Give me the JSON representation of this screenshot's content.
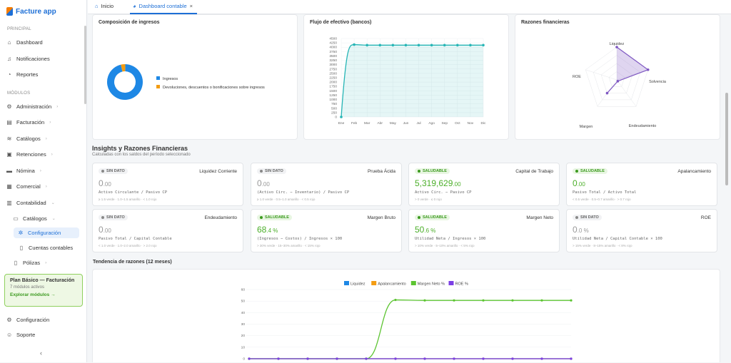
{
  "app": {
    "name": "Facture app"
  },
  "sidebar": {
    "section_principal": "PRINCIPAL",
    "principal": [
      {
        "label": "Dashboard",
        "icon": "home-icon"
      },
      {
        "label": "Notificaciones",
        "icon": "bell-icon"
      },
      {
        "label": "Reportes",
        "icon": "report-icon"
      }
    ],
    "section_modulos": "MÓDULOS",
    "modulos": [
      {
        "label": "Administración",
        "icon": "admin-icon"
      },
      {
        "label": "Facturación",
        "icon": "invoice-icon"
      },
      {
        "label": "Catálogos",
        "icon": "stack-icon"
      },
      {
        "label": "Retenciones",
        "icon": "retention-icon"
      },
      {
        "label": "Nómina",
        "icon": "payroll-icon"
      },
      {
        "label": "Comercial",
        "icon": "commercial-icon"
      },
      {
        "label": "Contabilidad",
        "icon": "accounting-icon"
      },
      {
        "label": "Catálogos",
        "icon": "folder-icon"
      },
      {
        "label": "Configuración",
        "icon": "settings-icon"
      },
      {
        "label": "Cuentas contables",
        "icon": "document-icon"
      },
      {
        "label": "Pólizas",
        "icon": "document-icon"
      }
    ],
    "plan": {
      "title": "Plan Básico — Facturación",
      "subtitle": "7 módulos activos",
      "link": "Explorar módulos →"
    },
    "footer": [
      {
        "label": "Configuración",
        "icon": "settings-icon"
      },
      {
        "label": "Soporte",
        "icon": "support-icon"
      }
    ],
    "collapse": "‹"
  },
  "tabs": [
    {
      "label": "Inicio"
    },
    {
      "label": "Dashboard contable",
      "close": "×"
    }
  ],
  "cards": {
    "composicion": {
      "title": "Composición de ingresos",
      "legend": [
        "Ingresos",
        "Devoluciones, descuentos o bonificaciones sobre ingresos"
      ],
      "colors": [
        "#1e88e5",
        "#f39c12"
      ]
    },
    "flujo": {
      "title": "Flujo de efectivo (bancos)"
    },
    "razones": {
      "title": "Razones financieras"
    }
  },
  "insights": {
    "title": "Insights y Razones Financieras",
    "subtitle": "Calculadas con los saldos del período seleccionado",
    "ratios": [
      {
        "status": "SIN DATO",
        "name": "Liquidez Corriente",
        "value": "0",
        "decimals": ".00",
        "suffix": "",
        "formula": "Activo Circulante / Pasivo CP",
        "threshold": "≥ 1.5 verde · 1.0–1.5 amarillo · < 1.0 rojo"
      },
      {
        "status": "SIN DATO",
        "name": "Prueba Ácida",
        "value": "0",
        "decimals": ".00",
        "suffix": "",
        "formula": "(Activo Circ. − Inventario) / Pasivo CP",
        "threshold": "≥ 1.0 verde · 0.5–1.0 amarillo · < 0.5 rojo"
      },
      {
        "status": "SALUDABLE",
        "name": "Capital de Trabajo",
        "value": "5,319,629",
        "decimals": ".00",
        "suffix": "",
        "formula": "Activo Circ. − Pasivo CP",
        "threshold": "> 0 verde · ≤ 0 rojo"
      },
      {
        "status": "SALUDABLE",
        "name": "Apalancamiento",
        "value": "0",
        "decimals": ".00",
        "suffix": "",
        "formula": "Pasivo Total / Activo Total",
        "threshold": "< 0.5 verde · 0.5–0.7 amarillo · > 0.7 rojo"
      },
      {
        "status": "SIN DATO",
        "name": "Endeudamiento",
        "value": "0",
        "decimals": ".00",
        "suffix": "",
        "formula": "Pasivo Total / Capital Contable",
        "threshold": "< 1.0 verde · 1.0–2.0 amarillo · > 2.0 rojo"
      },
      {
        "status": "SALUDABLE",
        "name": "Margen Bruto",
        "value": "68",
        "decimals": ".4",
        "suffix": " %",
        "formula": "(Ingresos − Costos) / Ingresos × 100",
        "threshold": "> 30% verde · 15–30% amarillo · < 15% rojo"
      },
      {
        "status": "SALUDABLE",
        "name": "Margen Neto",
        "value": "50",
        "decimals": ".6",
        "suffix": " %",
        "formula": "Utilidad Neta / Ingresos × 100",
        "threshold": "> 10% verde · 5–10% amarillo · < 5% rojo"
      },
      {
        "status": "SIN DATO",
        "name": "ROE",
        "value": "0",
        "decimals": ".0",
        "suffix": " %",
        "formula": "Utilidad Neta / Capital Contable × 100",
        "threshold": "> 15% verde · 8–15% amarillo · < 8% rojo"
      }
    ]
  },
  "trend": {
    "title": "Tendencia de razones (12 meses)"
  },
  "chart_data": [
    {
      "type": "pie",
      "title": "Composición de ingresos",
      "categories": [
        "Ingresos",
        "Devoluciones, descuentos o bonificaciones sobre ingresos"
      ],
      "values": [
        96,
        4
      ],
      "colors": [
        "#1e88e5",
        "#f39c12"
      ]
    },
    {
      "type": "area",
      "title": "Flujo de efectivo (bancos)",
      "categories": [
        "Ene",
        "Feb",
        "Mar",
        "Abr",
        "May",
        "Jun",
        "Jul",
        "Ago",
        "Sep",
        "Oct",
        "Nov",
        "Dic"
      ],
      "values": [
        0,
        4150,
        4120,
        4120,
        4120,
        4120,
        4120,
        4120,
        4120,
        4120,
        4120,
        4120
      ],
      "yticks": [
        0,
        250,
        500,
        750,
        1000,
        1250,
        1500,
        1750,
        2000,
        2250,
        2500,
        2750,
        3000,
        3250,
        3500,
        3750,
        4000,
        4250,
        4500
      ],
      "ylim": [
        0,
        4500
      ],
      "color": "#26b5b5"
    },
    {
      "type": "radar",
      "title": "Razones financieras",
      "axes": [
        "Liquidez",
        "Solvencia",
        "Endeudamiento",
        "Margen",
        "ROE"
      ],
      "values": [
        1.0,
        1.0,
        0.05,
        0.5,
        0
      ],
      "color": "#7e57c2"
    },
    {
      "type": "line",
      "title": "Tendencia de razones (12 meses)",
      "legend_position": "top",
      "yticks": [
        0,
        10,
        20,
        30,
        40,
        50,
        60
      ],
      "ylim": [
        0,
        60
      ],
      "series": [
        {
          "name": "Liquidez",
          "color": "#1e88e5",
          "values": [
            0,
            0,
            0,
            0,
            0,
            0,
            0,
            0,
            0,
            0,
            0,
            0
          ]
        },
        {
          "name": "Apalancamiento",
          "color": "#f39c12",
          "values": [
            0,
            0,
            0,
            0,
            0,
            0,
            0,
            0,
            0,
            0,
            0,
            0
          ]
        },
        {
          "name": "Margen Neto %",
          "color": "#5cc431",
          "values": [
            0,
            0,
            0,
            0,
            0,
            51,
            50.6,
            50.6,
            50.6,
            50.6,
            50.6,
            50.6
          ]
        },
        {
          "name": "ROE %",
          "color": "#7b3fe4",
          "values": [
            0,
            0,
            0,
            0,
            0,
            0,
            0,
            0,
            0,
            0,
            0,
            0
          ]
        }
      ]
    }
  ]
}
